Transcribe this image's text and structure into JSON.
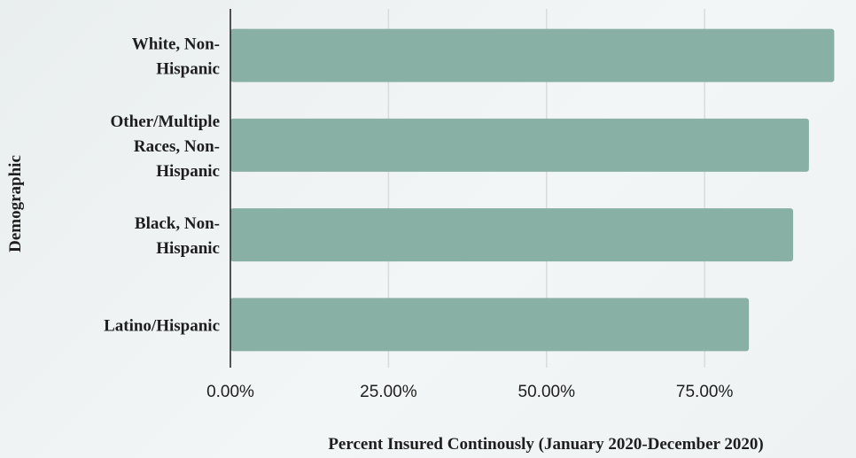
{
  "chart_data": {
    "type": "bar",
    "orientation": "horizontal",
    "categories": [
      [
        "White, Non-",
        "Hispanic"
      ],
      [
        "Other/Multiple",
        "Races, Non-",
        "Hispanic"
      ],
      [
        "Black, Non-",
        "Hispanic"
      ],
      [
        "Latino/Hispanic"
      ]
    ],
    "values": [
      95.5,
      91.5,
      89,
      82
    ],
    "xlabel": "Percent Insured Continously (January 2020-December 2020)",
    "ylabel": "Demographic",
    "xlim": [
      0,
      96
    ],
    "xticks": [
      0,
      25,
      50,
      75
    ],
    "xtick_labels": [
      "0.00%",
      "25.00%",
      "50.00%",
      "75.00%"
    ],
    "grid": "vertical",
    "legend": "none",
    "bar_color": "#89b0a5",
    "axis_color": "#1e1e1e",
    "grid_color": "#d9dcdc"
  }
}
